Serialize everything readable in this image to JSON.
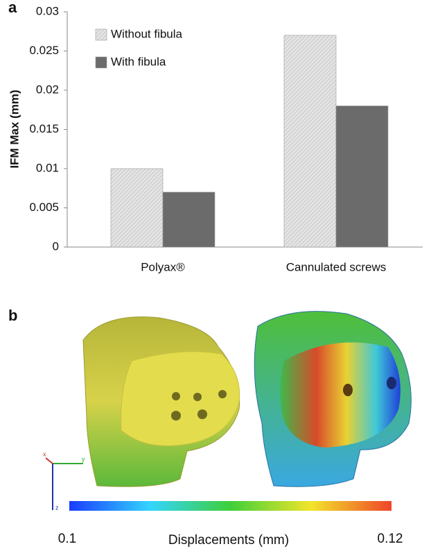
{
  "chart_data": {
    "type": "bar",
    "panel": "a",
    "ylabel": "IFM Max (mm)",
    "categories": [
      "Polyax®",
      "Cannulated screws"
    ],
    "series": [
      {
        "name": "Without fibula",
        "color": "#dcdcdc",
        "hatch": true,
        "values": [
          0.01,
          0.027
        ]
      },
      {
        "name": "With fibula",
        "color": "#6b6b6b",
        "hatch": false,
        "values": [
          0.007,
          0.018
        ]
      }
    ],
    "ylim": [
      0,
      0.03
    ],
    "yticks": [
      0,
      0.005,
      0.01,
      0.015,
      0.02,
      0.025,
      0.03
    ],
    "grid": false,
    "legend": "upper-left"
  },
  "figure_b": {
    "panel": "b",
    "colorbar": {
      "label": "Displacements (mm)",
      "min": 0.1,
      "max": 0.12
    },
    "axes_labels": [
      "x",
      "y",
      "z"
    ]
  }
}
